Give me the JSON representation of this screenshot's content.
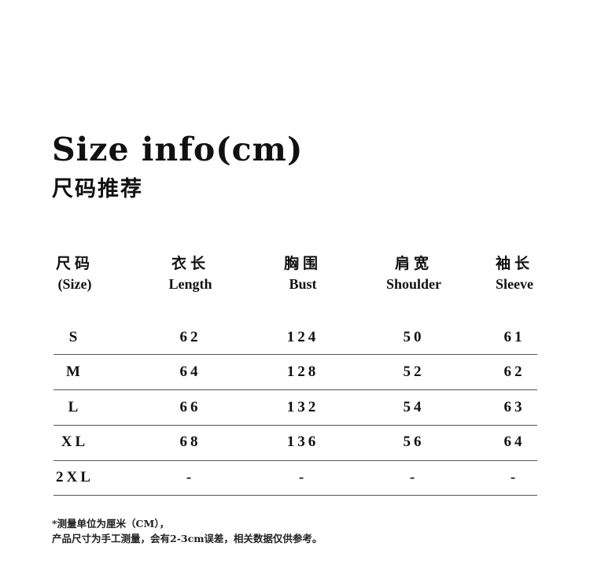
{
  "title": "Size info(cm)",
  "subtitle": "尺码推荐",
  "columns": [
    {
      "zh": "尺码",
      "en": "(Size)"
    },
    {
      "zh": "衣长",
      "en": "Length"
    },
    {
      "zh": "胸围",
      "en": "Bust"
    },
    {
      "zh": "肩宽",
      "en": "Shoulder"
    },
    {
      "zh": "袖长",
      "en": "Sleeve"
    }
  ],
  "rows": [
    [
      "S",
      "62",
      "124",
      "50",
      "61"
    ],
    [
      "M",
      "64",
      "128",
      "52",
      "62"
    ],
    [
      "L",
      "66",
      "132",
      "54",
      "63"
    ],
    [
      "XL",
      "68",
      "136",
      "56",
      "64"
    ],
    [
      "2XL",
      "-",
      "-",
      "-",
      "-"
    ]
  ],
  "notes": [
    "*测量单位为厘米（CM），",
    "产品尺寸为手工测量，会有2-3cm误差，相关数据仅供参考。"
  ]
}
